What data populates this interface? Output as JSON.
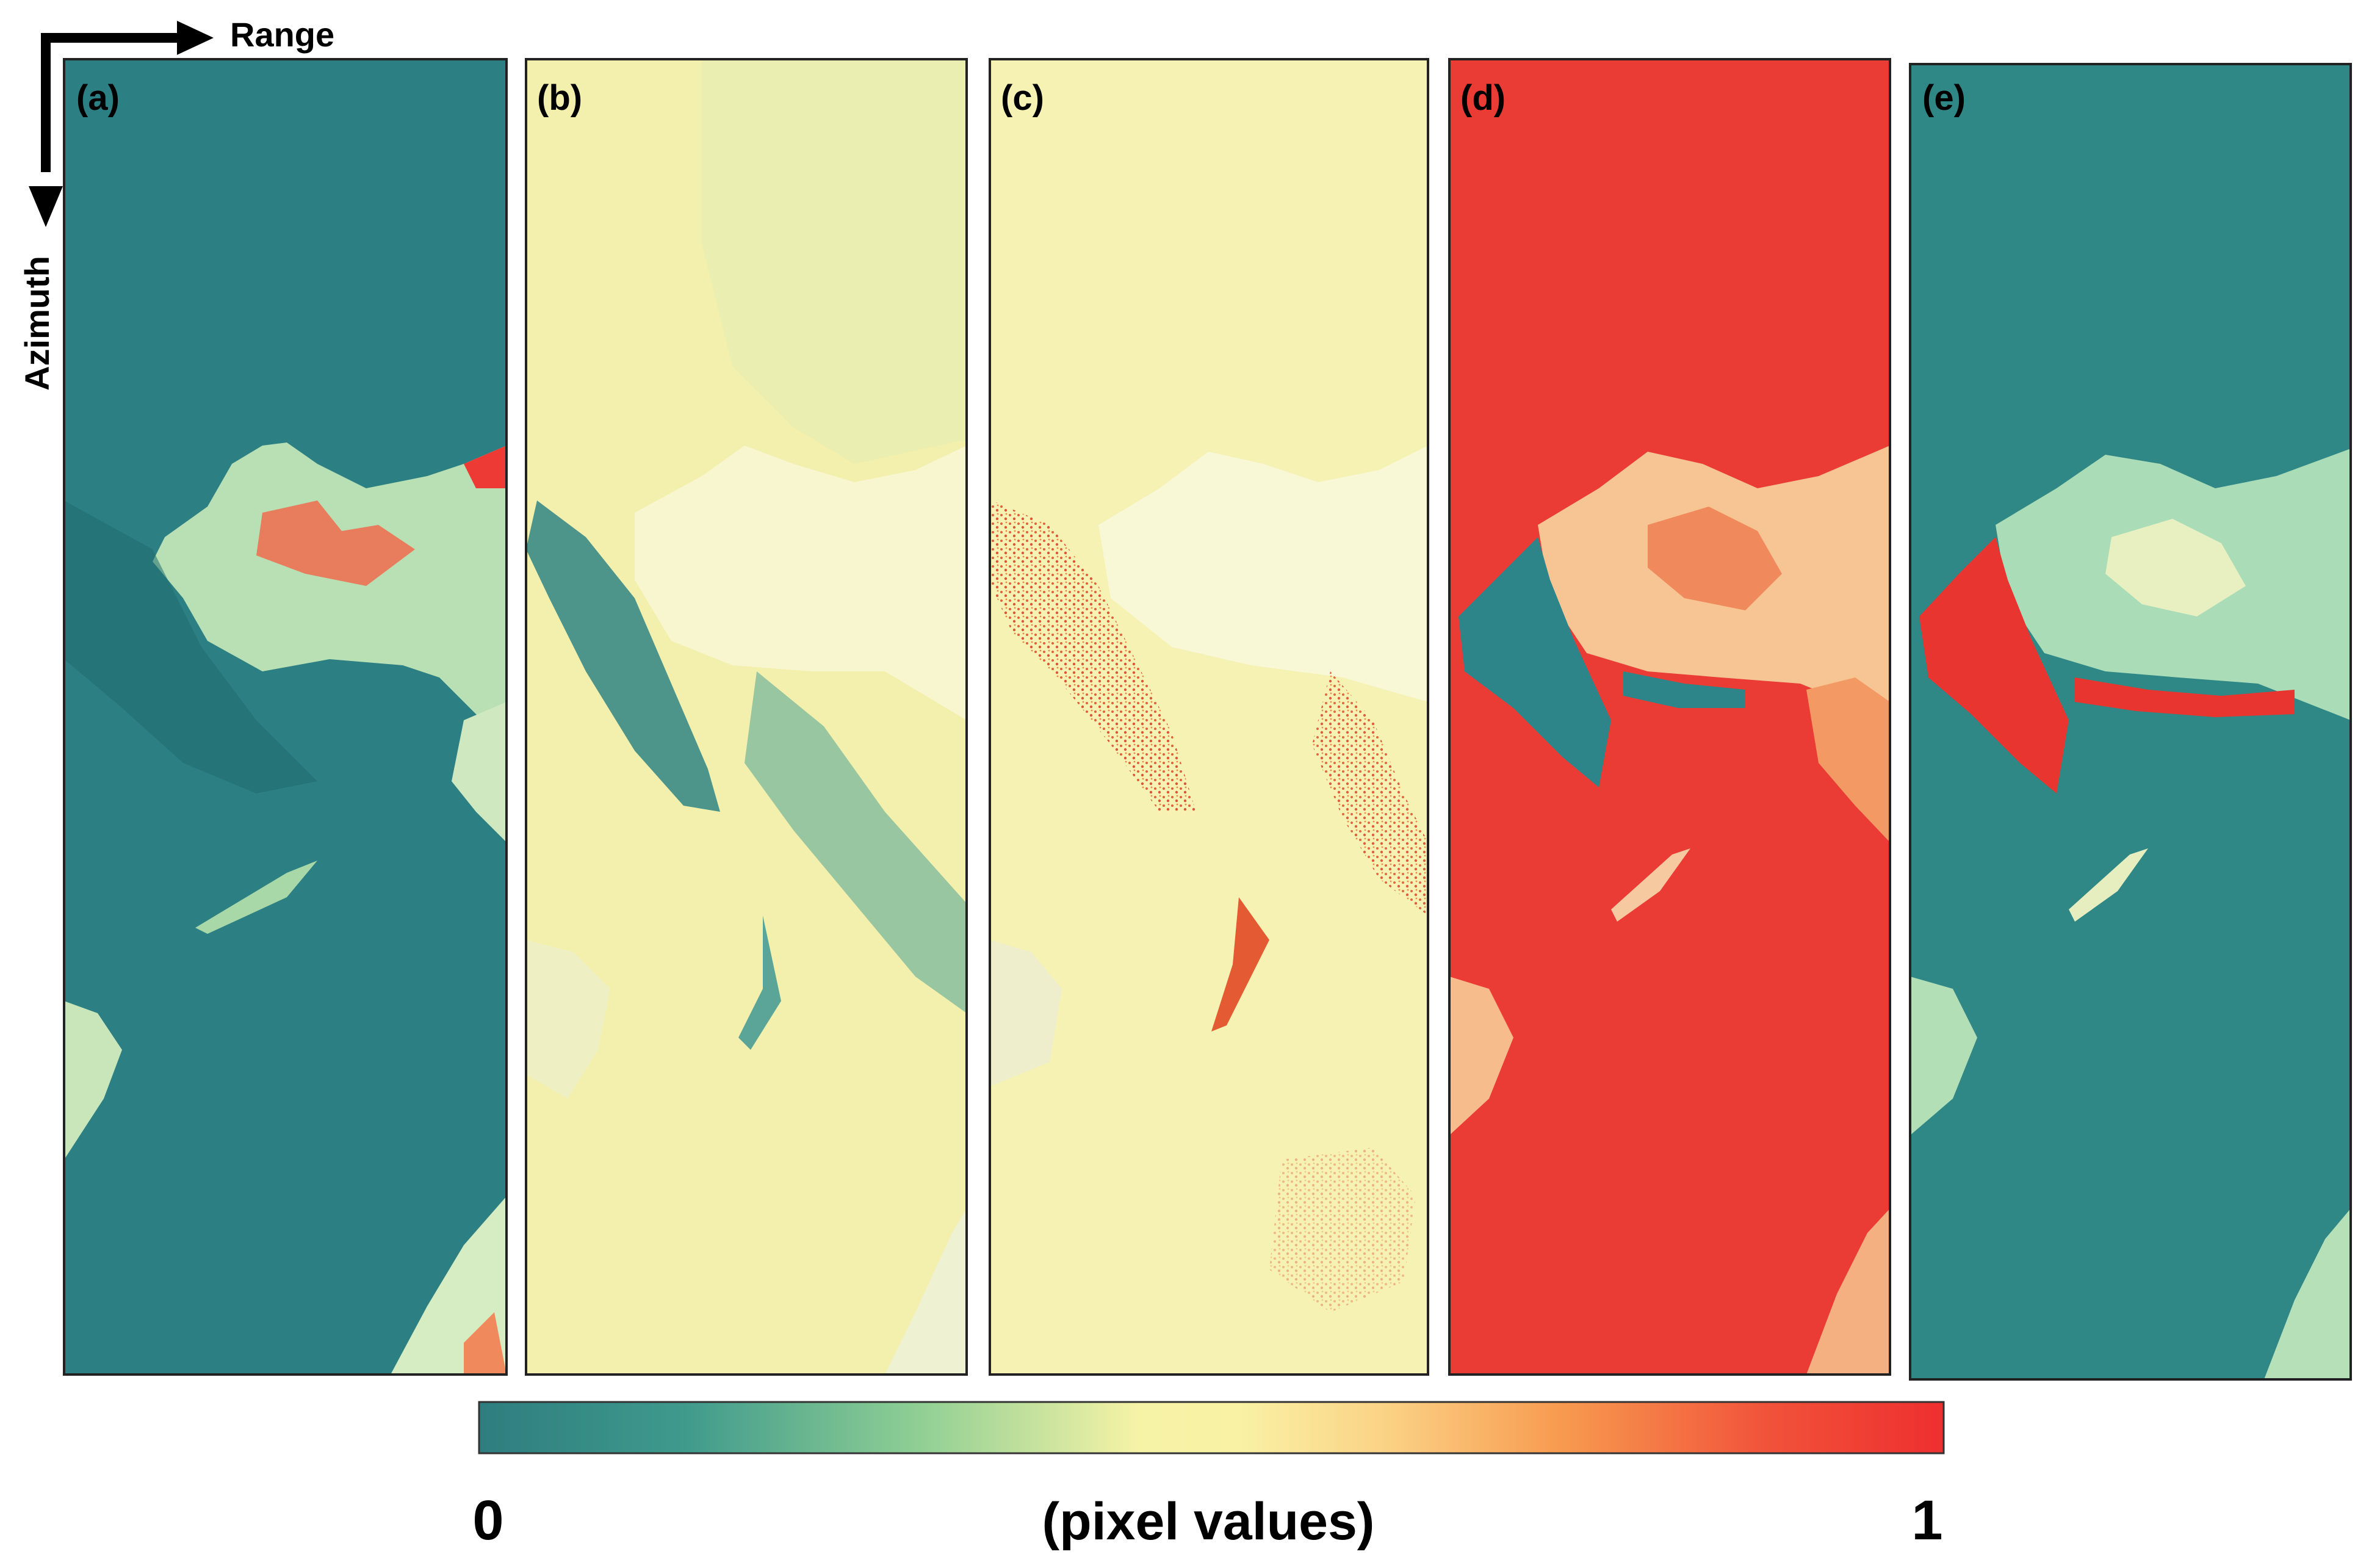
{
  "axes": {
    "range_label": "Range",
    "azimuth_label": "Azimuth"
  },
  "panels": [
    {
      "label": "(a)",
      "theme": "teal-base"
    },
    {
      "label": "(b)",
      "theme": "yellow-base"
    },
    {
      "label": "(c)",
      "theme": "yellow-speckle"
    },
    {
      "label": "(d)",
      "theme": "red-base"
    },
    {
      "label": "(e)",
      "theme": "teal-red-land"
    }
  ],
  "colorbar": {
    "min_label": "0",
    "max_label": "1",
    "caption": "(pixel values)",
    "colors": [
      "#2e7d7f",
      "#3f9a8c",
      "#8fcf94",
      "#f6f3a6",
      "#f9f1a4",
      "#fbd285",
      "#f79a4f",
      "#f1523a",
      "#ee2f2f"
    ]
  }
}
